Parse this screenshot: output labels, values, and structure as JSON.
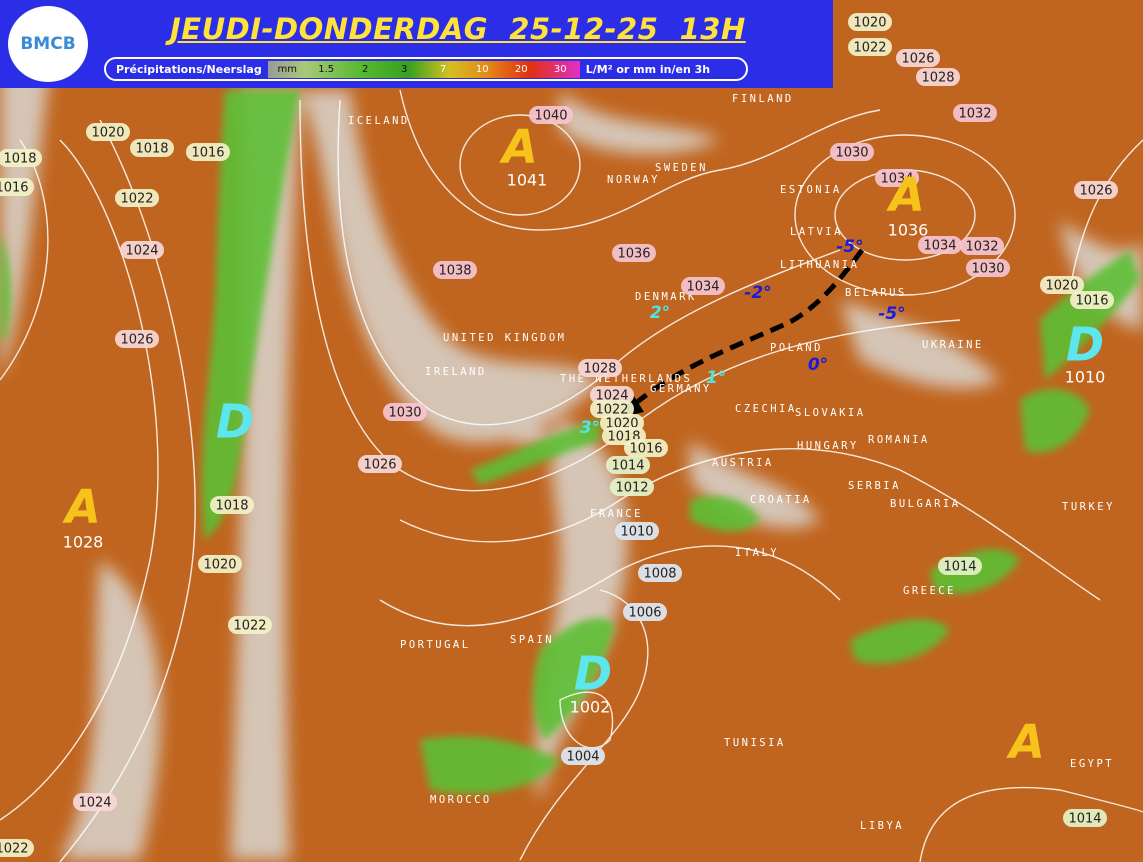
{
  "header": {
    "logo": "BMCB",
    "title": "JEUDI-DONDERDAG  25-12-25  13H",
    "legend_label": "Précipitations/Neerslag",
    "legend_unit": "mm",
    "legend_steps": [
      "1.5",
      "2",
      "3",
      "7",
      "10",
      "20",
      "30"
    ],
    "legend_suffix": "L/M² or mm in/en 3h"
  },
  "pressure_centers": [
    {
      "letter": "A",
      "value": "1041"
    },
    {
      "letter": "A",
      "value": "1036"
    },
    {
      "letter": "D",
      "value": "1010"
    },
    {
      "letter": "D"
    },
    {
      "letter": "A",
      "value": "1028"
    },
    {
      "letter": "D",
      "value": "1002"
    },
    {
      "letter": "A"
    }
  ],
  "isobar_labels": [
    "1020",
    "1022",
    "1026",
    "1028",
    "1032",
    "1030",
    "1034",
    "1034",
    "1032",
    "1030",
    "1026",
    "1020",
    "1016",
    "1040",
    "1036",
    "1034",
    "1038",
    "1028",
    "1024",
    "1022",
    "1020",
    "1018",
    "1016",
    "1014",
    "1012",
    "1010",
    "1008",
    "1006",
    "1004",
    "1030",
    "1026",
    "1018",
    "1020",
    "1022",
    "1024",
    "1022",
    "1014",
    "1014",
    "1020",
    "1018",
    "1016",
    "1022",
    "1024",
    "1026",
    "1018",
    "1016"
  ],
  "countries": [
    "ICELAND",
    "FINLAND",
    "SWEDEN",
    "NORWAY",
    "ESTONIA",
    "LATVIA",
    "LITHUANIA",
    "DENMARK",
    "BELARUS",
    "UNITED KINGDOM",
    "IRELAND",
    "POLAND",
    "UKRAINE",
    "THE NETHERLANDS",
    "GERMANY",
    "CZECHIA",
    "SLOVAKIA",
    "ROMANIA",
    "HUNGARY",
    "AUSTRIA",
    "SERBIA",
    "CROATIA",
    "BULGARIA",
    "FRANCE",
    "TURKEY",
    "ITALY",
    "GREECE",
    "PORTUGAL",
    "SPAIN",
    "TUNISIA",
    "MOROCCO",
    "LIBYA",
    "EGYPT"
  ],
  "temperatures": [
    "-5°",
    "-2°",
    "-5°",
    "0°",
    "2°",
    "1°",
    "3°"
  ]
}
